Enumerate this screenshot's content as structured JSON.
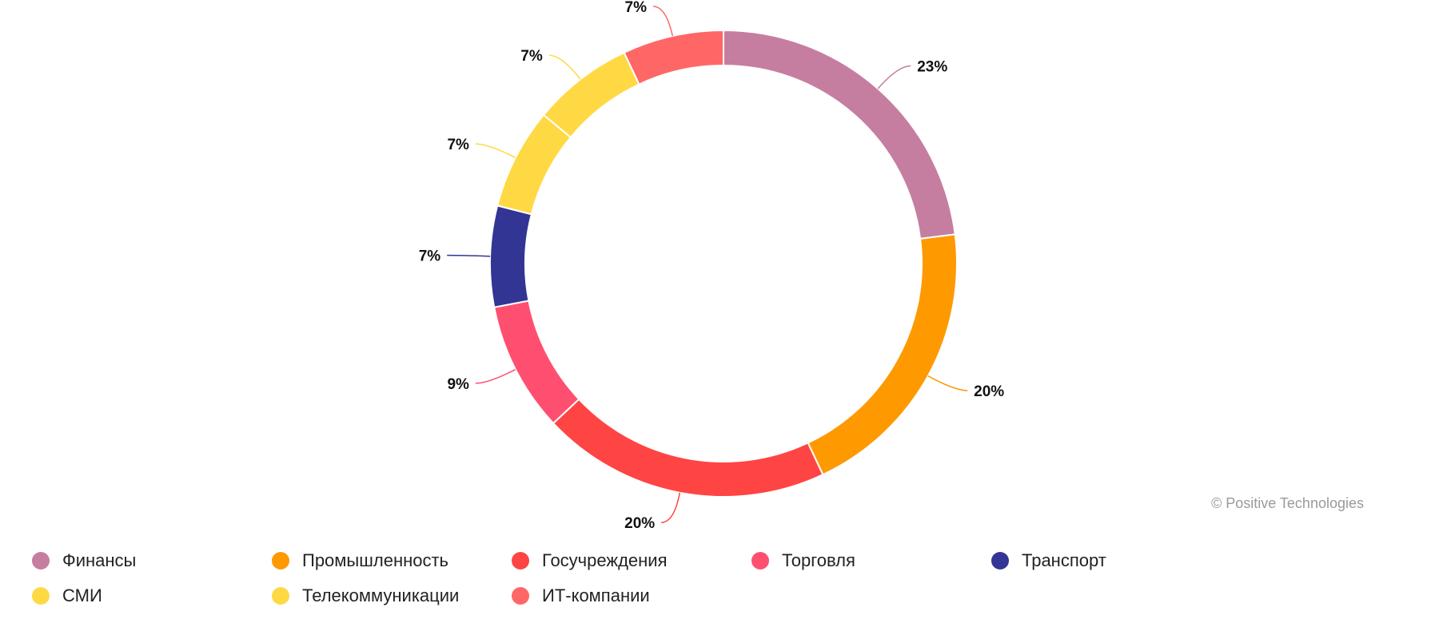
{
  "chart_data": {
    "type": "pie",
    "donut": true,
    "unit": "%",
    "categories": [
      "Финансы",
      "Промышленность",
      "Госучреждения",
      "Торговля",
      "Транспорт",
      "СМИ",
      "Телекоммуникации",
      "ИТ-компании"
    ],
    "values": [
      23,
      20,
      20,
      9,
      7,
      7,
      7,
      7
    ],
    "labels": [
      "23%",
      "20%",
      "20%",
      "9%",
      "7%",
      "7%",
      "7%",
      "7%"
    ],
    "colors": [
      "#c57ea0",
      "#ff9900",
      "#ff4444",
      "#ff4f71",
      "#323594",
      "#ffd944",
      "#ffd944",
      "#ff6766"
    ],
    "legend_position": "bottom"
  },
  "legend_rows": [
    [
      0,
      1,
      2,
      3,
      4
    ],
    [
      5,
      6,
      7
    ]
  ],
  "credit": "© Positive Technologies"
}
